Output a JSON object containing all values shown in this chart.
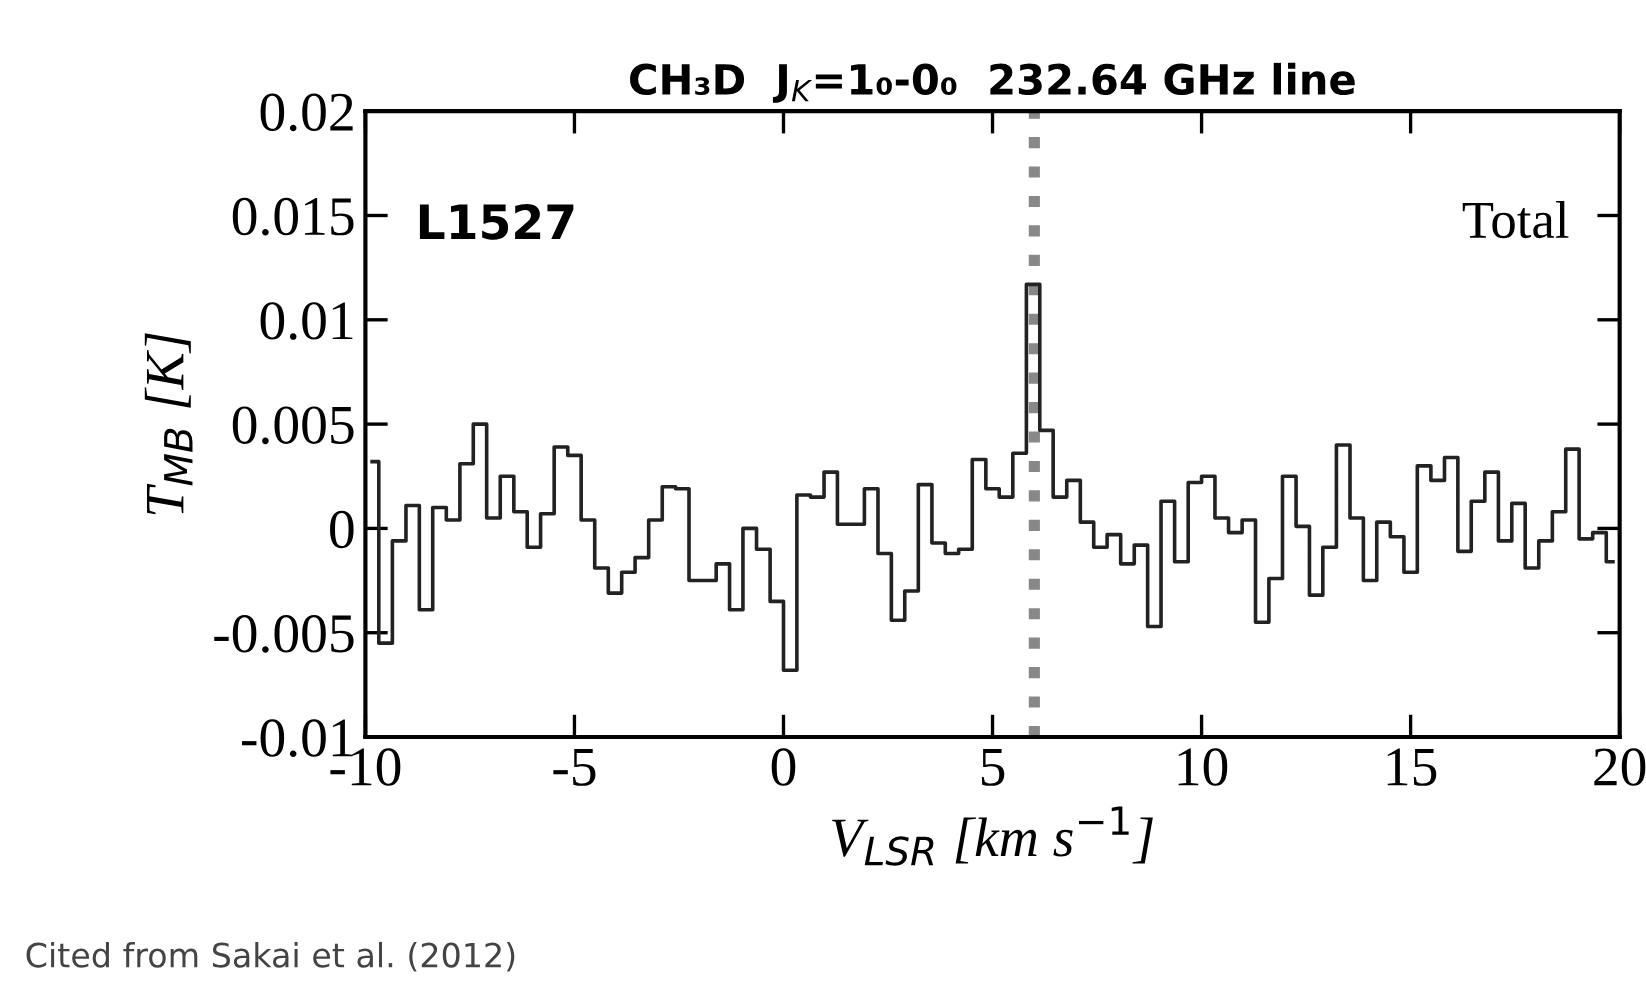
{
  "chart_data": {
    "type": "step",
    "title": "CH₃D  J$_{K}$=1₀-0₀  232.64 GHz line",
    "xlabel": "V$_{LSR}$ [km s$^{−1}$]",
    "ylabel": "T$_{MB}$ [K]",
    "annotations": [
      {
        "text": "L1527"
      },
      {
        "text": "Total"
      },
      {
        "text": "Cited from Sakai et al. (2012)"
      }
    ],
    "x": [
      -9.84,
      -9.52,
      -9.19,
      -8.87,
      -8.55,
      -8.23,
      -7.9,
      -7.58,
      -7.26,
      -6.94,
      -6.61,
      -6.29,
      -5.97,
      -5.65,
      -5.32,
      -5.0,
      -4.68,
      -4.35,
      -4.03,
      -3.71,
      -3.39,
      -3.06,
      -2.74,
      -2.42,
      -2.1,
      -1.77,
      -1.45,
      -1.13,
      -0.81,
      -0.48,
      -0.16,
      0.16,
      0.48,
      0.81,
      1.13,
      1.45,
      1.77,
      2.1,
      2.42,
      2.74,
      3.06,
      3.39,
      3.71,
      4.03,
      4.35,
      4.68,
      5.0,
      5.32,
      5.65,
      5.97,
      6.29,
      6.61,
      6.94,
      7.26,
      7.58,
      7.9,
      8.23,
      8.55,
      8.87,
      9.19,
      9.52,
      9.84,
      10.16,
      10.48,
      10.81,
      11.13,
      11.45,
      11.77,
      12.1,
      12.42,
      12.74,
      13.06,
      13.39,
      13.71,
      14.03,
      14.35,
      14.68,
      15.0,
      15.32,
      15.65,
      15.97,
      16.29,
      16.61,
      16.94,
      17.26,
      17.58,
      17.9,
      18.23,
      18.55,
      18.87,
      19.19,
      19.52,
      19.84
    ],
    "series": [
      {
        "color": "#222222",
        "values": [
          0.0032,
          -0.0055,
          -0.0006,
          0.0011,
          -0.0039,
          0.001,
          0.0004,
          0.0031,
          0.005,
          0.0005,
          0.0025,
          0.0008,
          -0.0009,
          0.0007,
          0.0039,
          0.0035,
          0.0004,
          -0.0019,
          -0.0031,
          -0.0021,
          -0.0014,
          0.0004,
          0.002,
          0.0019,
          -0.0025,
          -0.0025,
          -0.0017,
          -0.0039,
          0.0,
          -0.001,
          -0.0035,
          -0.0068,
          0.0016,
          0.0015,
          0.0027,
          0.0002,
          0.0002,
          0.0019,
          -0.0012,
          -0.0044,
          -0.003,
          0.0021,
          -0.0007,
          -0.0012,
          -0.001,
          0.0033,
          0.0019,
          0.0015,
          0.0036,
          0.0117,
          0.0047,
          0.0015,
          0.0023,
          0.0003,
          -0.0009,
          -0.0003,
          -0.0017,
          -0.0008,
          -0.0047,
          0.0013,
          -0.0016,
          0.0022,
          0.0025,
          0.0005,
          -0.0002,
          0.0004,
          -0.0045,
          -0.0024,
          0.0025,
          0.0001,
          -0.0032,
          -0.0009,
          0.004,
          0.0005,
          -0.0025,
          0.0003,
          -0.0004,
          -0.0021,
          0.003,
          0.0023,
          0.0034,
          -0.0011,
          0.0013,
          0.0027,
          -0.0006,
          0.0012,
          -0.0019,
          -0.0006,
          0.0008,
          0.0038,
          -0.0005,
          -0.0002,
          -0.0016
        ]
      }
    ],
    "xlim": [
      -10,
      20
    ],
    "ylim": [
      -0.01,
      0.02
    ],
    "xticks": [
      {
        "value": -10,
        "label": "-10"
      },
      {
        "value": -5,
        "label": "-5"
      },
      0,
      5,
      10,
      15,
      20
    ],
    "yticks": [
      {
        "value": -0.01,
        "label": "-0.01"
      },
      {
        "value": -0.005,
        "label": "-0.005"
      },
      0,
      0.005,
      0.01,
      0.015,
      0.02
    ],
    "ref_lines": [
      {
        "axis": "x",
        "value": 6,
        "color": "#888888",
        "line_style": "dotted"
      }
    ],
    "grid": false,
    "legend": false
  }
}
